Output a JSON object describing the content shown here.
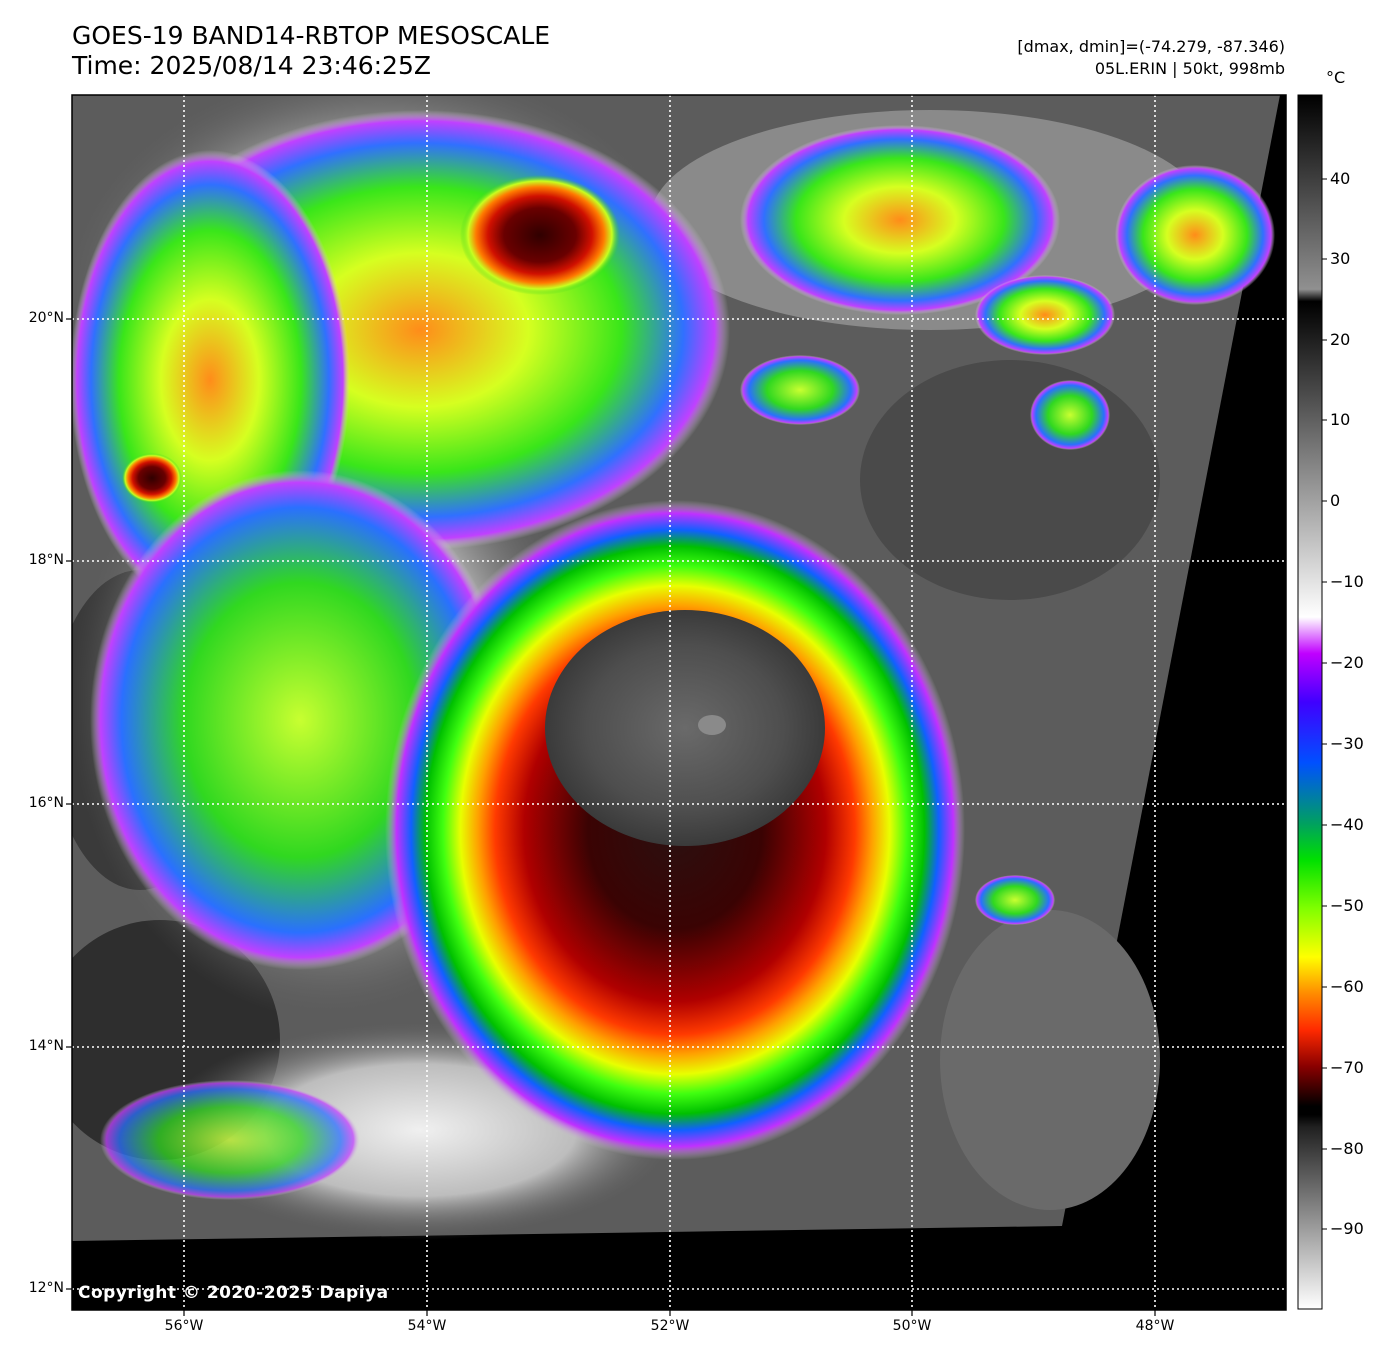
{
  "header": {
    "title_line1": "GOES-19 BAND14-RBTOP MESOSCALE",
    "title_line2": "Time: 2025/08/14 23:46:25Z",
    "range_text": "[dmax, dmin]=(-74.279, -87.346)",
    "storm_text": "05L.ERIN | 50kt, 998mb"
  },
  "map": {
    "copyright": "Copyright © 2020-2025 Dapiya",
    "lat_labels": [
      "20°N",
      "18°N",
      "16°N",
      "14°N",
      "12°N"
    ],
    "lon_labels": [
      "56°W",
      "54°W",
      "52°W",
      "50°W",
      "48°W"
    ],
    "storm_name": "05L.ERIN"
  },
  "colorbar": {
    "unit": "°C",
    "ticks": [
      "40",
      "30",
      "20",
      "10",
      "0",
      "−10",
      "−20",
      "−30",
      "−40",
      "−50",
      "−60",
      "−70",
      "−80",
      "−90"
    ]
  }
}
